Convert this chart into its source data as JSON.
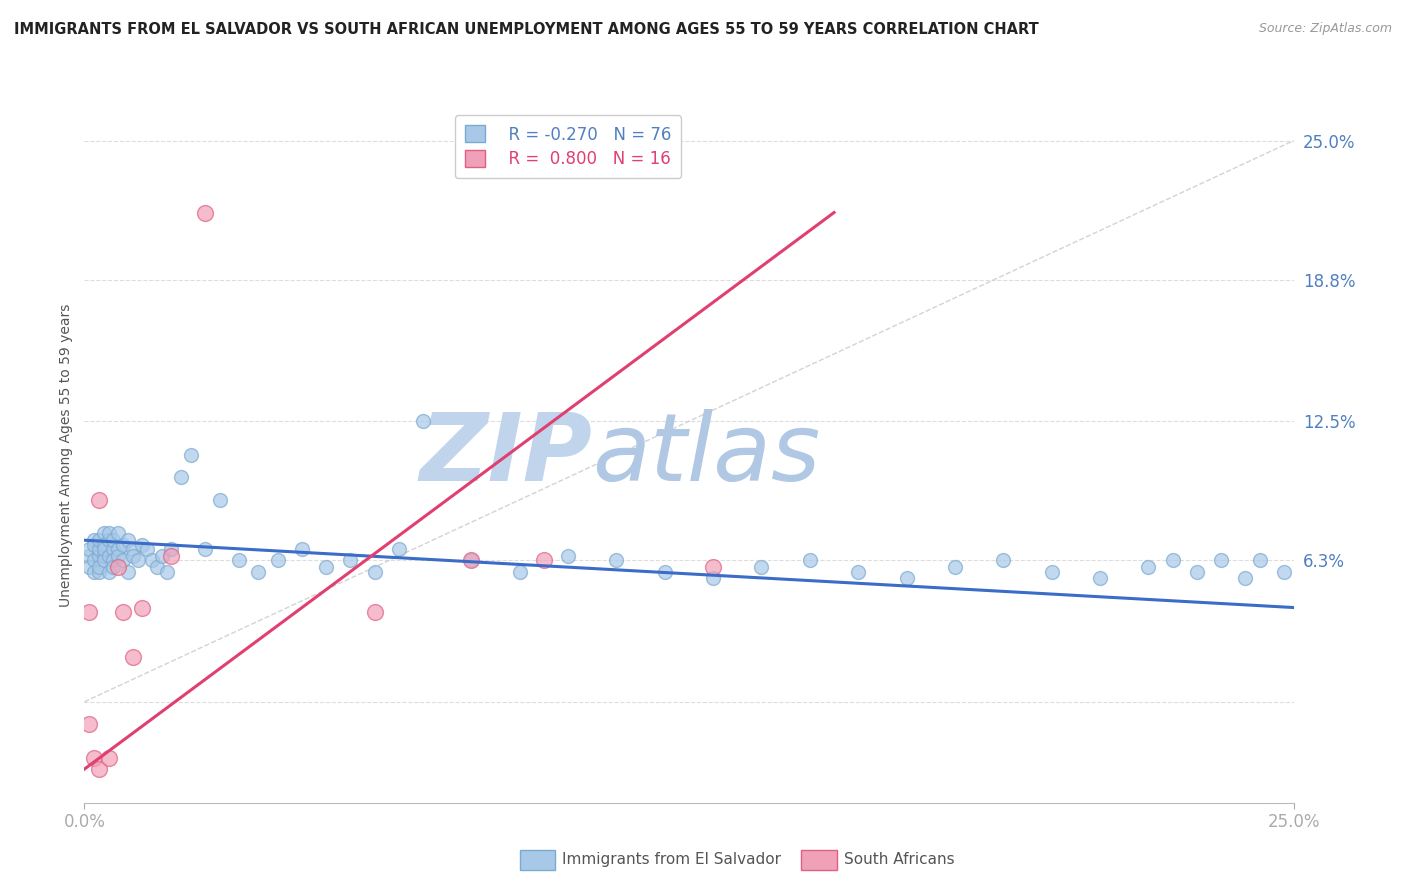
{
  "title": "IMMIGRANTS FROM EL SALVADOR VS SOUTH AFRICAN UNEMPLOYMENT AMONG AGES 55 TO 59 YEARS CORRELATION CHART",
  "source_text": "Source: ZipAtlas.com",
  "xlabel_bottom": "Immigrants from El Salvador",
  "xlabel_bottom2": "South Africans",
  "ylabel": "Unemployment Among Ages 55 to 59 years",
  "xmin": 0.0,
  "xmax": 0.25,
  "ymin": -0.045,
  "ymax": 0.265,
  "yticks": [
    0.0,
    0.063,
    0.125,
    0.188,
    0.25
  ],
  "ytick_labels": [
    "",
    "6.3%",
    "12.5%",
    "18.8%",
    "25.0%"
  ],
  "xticks": [
    0.0,
    0.25
  ],
  "xtick_labels": [
    "0.0%",
    "25.0%"
  ],
  "blue_R": -0.27,
  "blue_N": 76,
  "pink_R": 0.8,
  "pink_N": 16,
  "blue_color": "#A8C8E8",
  "pink_color": "#F0A0B8",
  "blue_dot_edge": "#7AAAD0",
  "pink_dot_edge": "#E06080",
  "blue_line_color": "#3A6CC8",
  "pink_line_color": "#E04070",
  "diag_line_color": "#C8C8C8",
  "grid_color": "#DDDDDD",
  "title_color": "#222222",
  "source_color": "#999999",
  "axis_label_color": "#5080C0",
  "watermark_zip_color": "#C8DCF0",
  "watermark_atlas_color": "#B8D0E8",
  "blue_scatter_x": [
    0.001,
    0.001,
    0.001,
    0.002,
    0.002,
    0.002,
    0.002,
    0.003,
    0.003,
    0.003,
    0.003,
    0.003,
    0.004,
    0.004,
    0.004,
    0.004,
    0.004,
    0.005,
    0.005,
    0.005,
    0.005,
    0.006,
    0.006,
    0.006,
    0.006,
    0.007,
    0.007,
    0.007,
    0.008,
    0.008,
    0.009,
    0.009,
    0.01,
    0.01,
    0.011,
    0.012,
    0.013,
    0.014,
    0.015,
    0.016,
    0.017,
    0.018,
    0.02,
    0.022,
    0.025,
    0.028,
    0.032,
    0.036,
    0.04,
    0.045,
    0.05,
    0.055,
    0.06,
    0.065,
    0.07,
    0.08,
    0.09,
    0.1,
    0.11,
    0.12,
    0.13,
    0.14,
    0.15,
    0.16,
    0.17,
    0.18,
    0.19,
    0.2,
    0.21,
    0.22,
    0.225,
    0.23,
    0.235,
    0.24,
    0.243,
    0.248
  ],
  "blue_scatter_y": [
    0.065,
    0.06,
    0.068,
    0.063,
    0.058,
    0.072,
    0.07,
    0.065,
    0.068,
    0.072,
    0.058,
    0.06,
    0.065,
    0.075,
    0.07,
    0.063,
    0.068,
    0.072,
    0.065,
    0.058,
    0.075,
    0.068,
    0.063,
    0.072,
    0.06,
    0.068,
    0.075,
    0.065,
    0.063,
    0.07,
    0.072,
    0.058,
    0.068,
    0.065,
    0.063,
    0.07,
    0.068,
    0.063,
    0.06,
    0.065,
    0.058,
    0.068,
    0.1,
    0.11,
    0.068,
    0.09,
    0.063,
    0.058,
    0.063,
    0.068,
    0.06,
    0.063,
    0.058,
    0.068,
    0.125,
    0.063,
    0.058,
    0.065,
    0.063,
    0.058,
    0.055,
    0.06,
    0.063,
    0.058,
    0.055,
    0.06,
    0.063,
    0.058,
    0.055,
    0.06,
    0.063,
    0.058,
    0.063,
    0.055,
    0.063,
    0.058
  ],
  "pink_scatter_x": [
    0.001,
    0.001,
    0.002,
    0.003,
    0.003,
    0.005,
    0.007,
    0.008,
    0.01,
    0.012,
    0.018,
    0.025,
    0.06,
    0.08,
    0.095,
    0.13
  ],
  "pink_scatter_y": [
    -0.01,
    0.04,
    -0.025,
    -0.03,
    0.09,
    -0.025,
    0.06,
    0.04,
    0.02,
    0.042,
    0.065,
    0.218,
    0.04,
    0.063,
    0.063,
    0.06
  ],
  "blue_trend_x": [
    0.0,
    0.25
  ],
  "blue_trend_y": [
    0.072,
    0.042
  ],
  "pink_trend_x": [
    -0.005,
    0.155
  ],
  "pink_trend_y": [
    -0.038,
    0.218
  ]
}
